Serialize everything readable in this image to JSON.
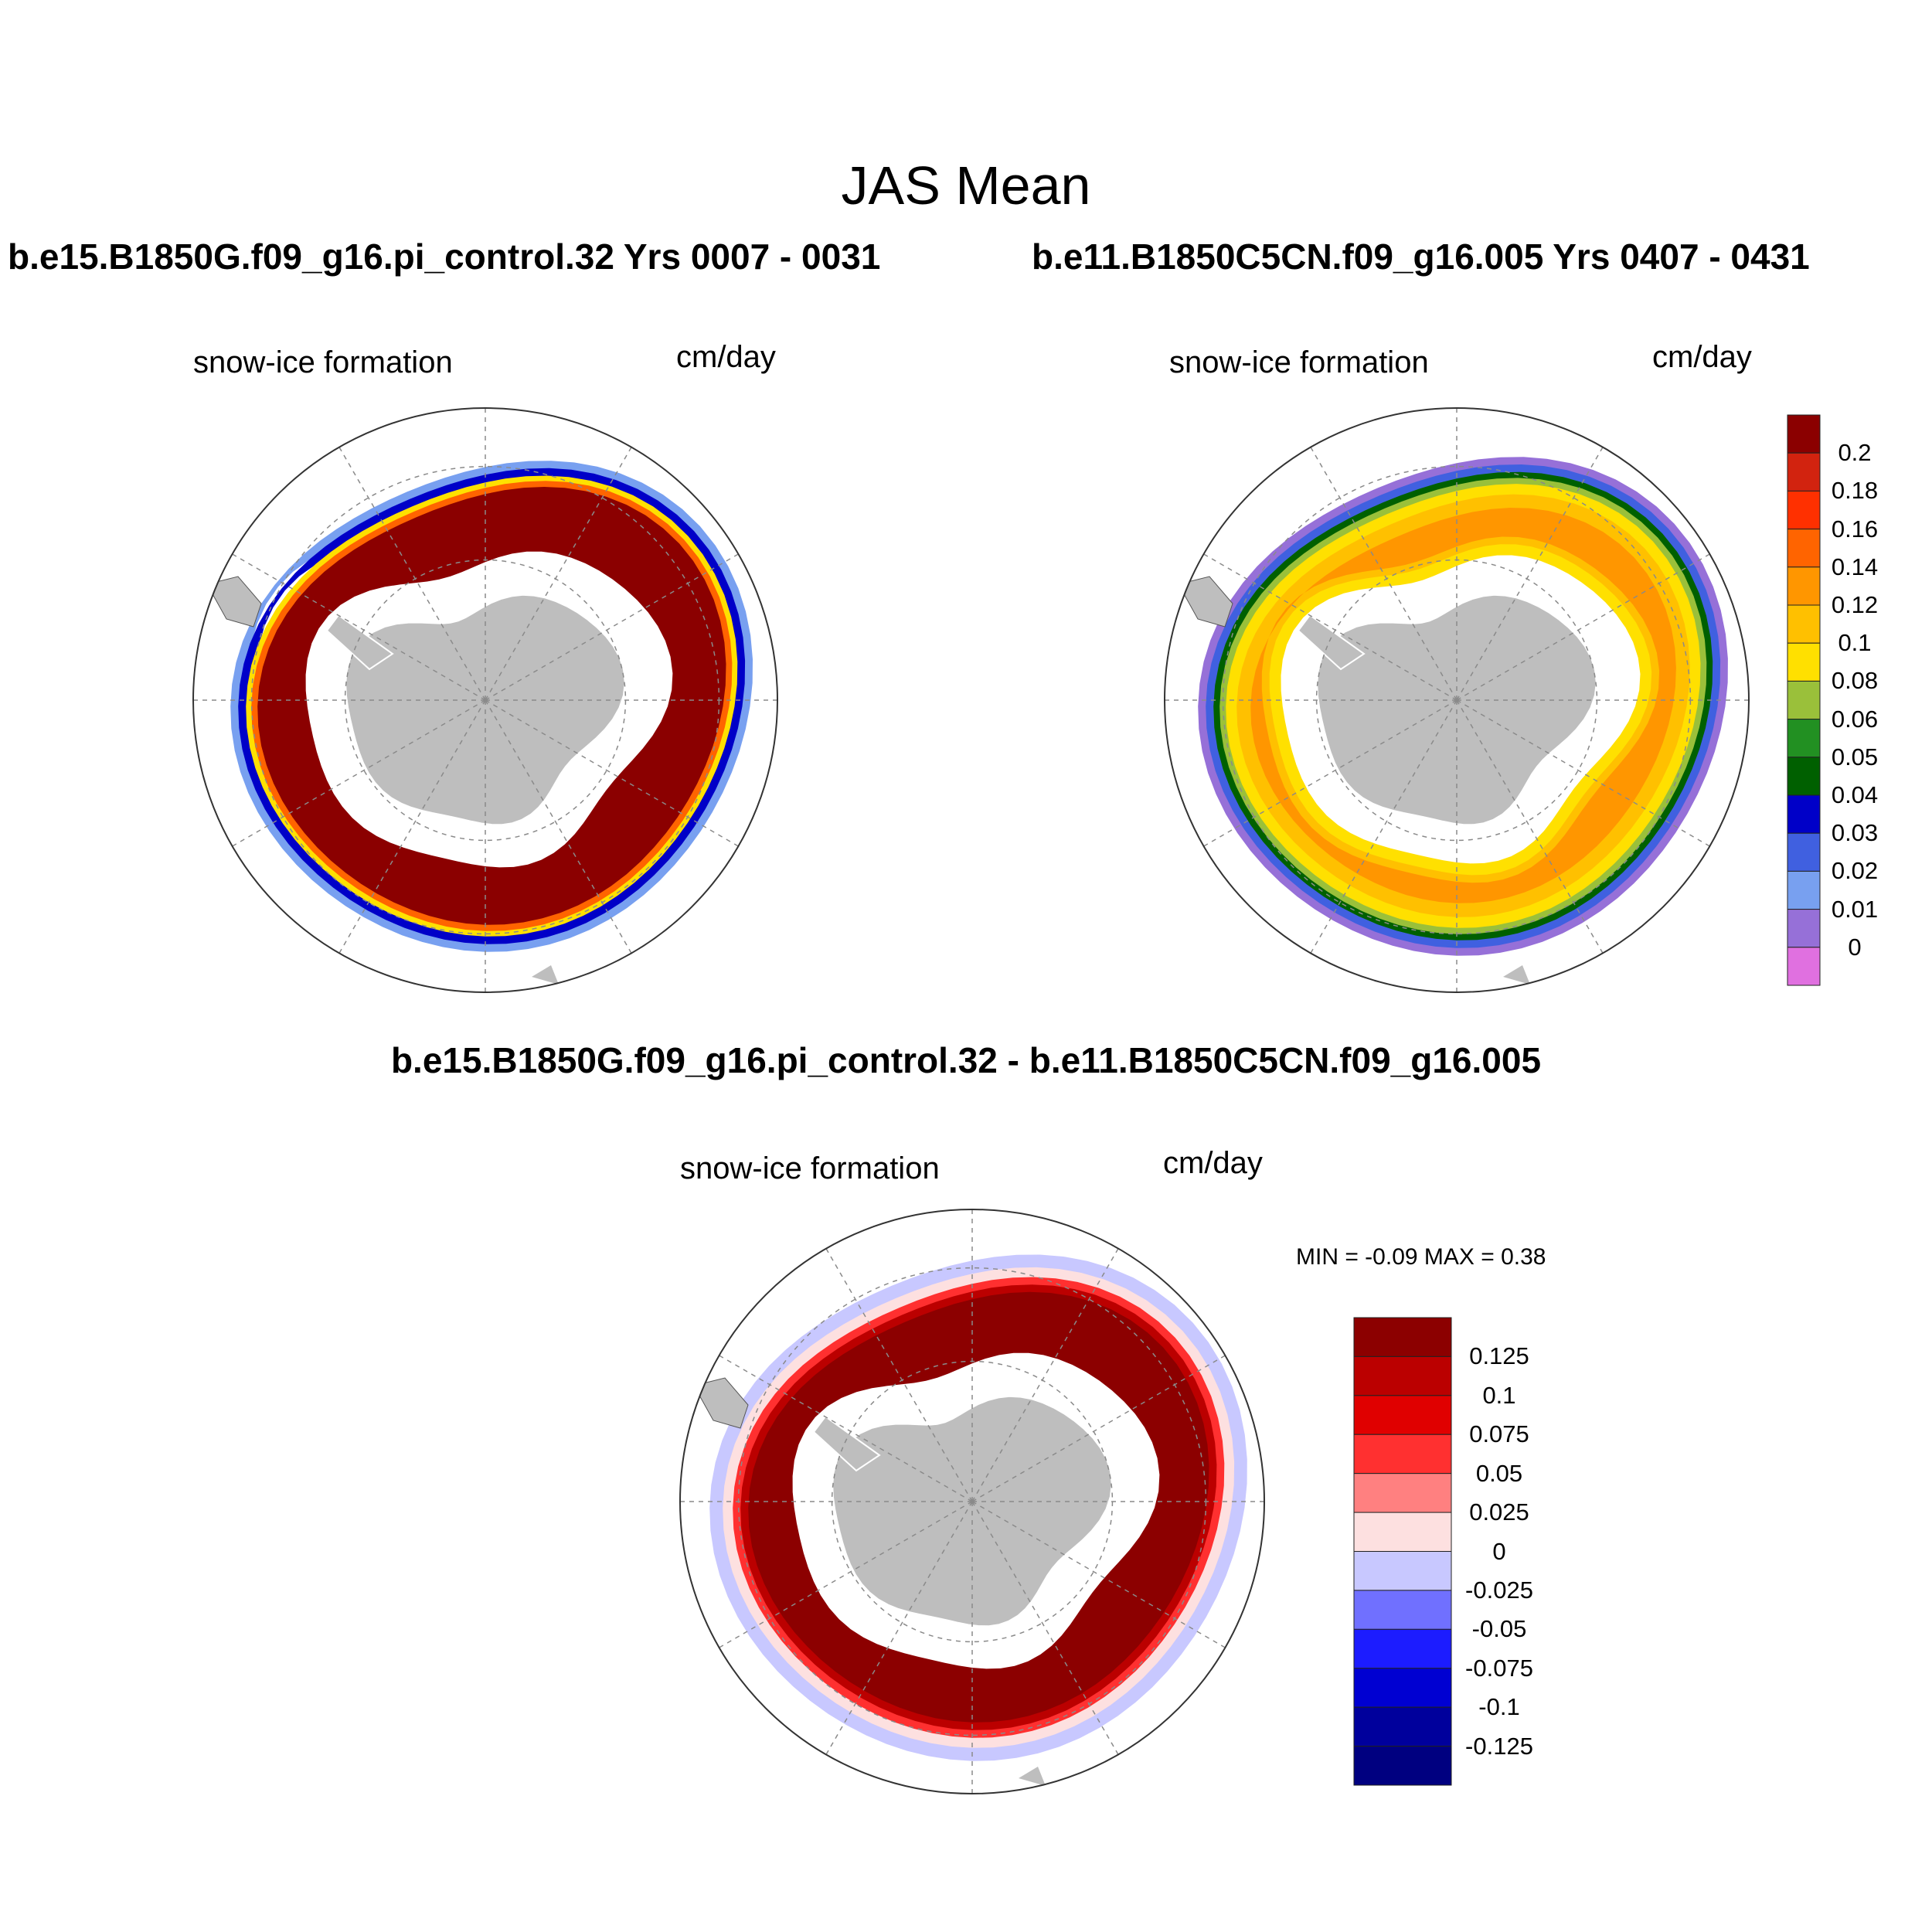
{
  "main_title": "JAS Mean",
  "panels": {
    "left": {
      "case_title": "b.e15.B1850G.f09_g16.pi_control.32  Yrs 0007 - 0031",
      "variable": "snow-ice formation",
      "units": "cm/day"
    },
    "right": {
      "case_title": "b.e11.B1850C5CN.f09_g16.005  Yrs 0407 - 0431",
      "variable": "snow-ice formation",
      "units": "cm/day"
    },
    "diff": {
      "case_title": "b.e15.B1850G.f09_g16.pi_control.32 - b.e11.B1850C5CN.f09_g16.005",
      "variable": "snow-ice formation",
      "units": "cm/day",
      "minmax": "MIN =  -0.09 MAX =   0.38"
    }
  },
  "colorbars": {
    "absolute": {
      "labels": [
        "0.2",
        "0.18",
        "0.16",
        "0.14",
        "0.12",
        "0.1",
        "0.08",
        "0.06",
        "0.05",
        "0.04",
        "0.03",
        "0.02",
        "0.01",
        "0"
      ],
      "colors": [
        "#8b0000",
        "#d2230f",
        "#ff3000",
        "#ff6400",
        "#ff9600",
        "#ffc000",
        "#ffe000",
        "#9ac03a",
        "#229022",
        "#006000",
        "#0000c8",
        "#4060e0",
        "#78a0f0",
        "#9670d8",
        "#e070e0"
      ]
    },
    "difference": {
      "labels": [
        "0.125",
        "0.1",
        "0.075",
        "0.05",
        "0.025",
        "0",
        "-0.025",
        "-0.05",
        "-0.075",
        "-0.1",
        "-0.125"
      ],
      "colors": [
        "#8c0000",
        "#bb0000",
        "#e00000",
        "#ff3030",
        "#ff8080",
        "#fde0e0",
        "#c8c8ff",
        "#7070ff",
        "#1c1cff",
        "#0000d2",
        "#00009c",
        "#000080"
      ]
    }
  },
  "map_colors": {
    "land": "#bebebe",
    "grid": "#8a8a8a"
  },
  "chart_data": [
    {
      "type": "heatmap",
      "title": "snow-ice formation",
      "subtitle": "b.e15.B1850G.f09_g16.pi_control.32  Yrs 0007 - 0031",
      "units": "cm/day",
      "projection": "south polar stereographic",
      "levels": [
        0,
        0.01,
        0.02,
        0.03,
        0.04,
        0.05,
        0.06,
        0.08,
        0.1,
        0.12,
        0.14,
        0.16,
        0.18,
        0.2
      ]
    },
    {
      "type": "heatmap",
      "title": "snow-ice formation",
      "subtitle": "b.e11.B1850C5CN.f09_g16.005  Yrs 0407 - 0431",
      "units": "cm/day",
      "projection": "south polar stereographic",
      "levels": [
        0,
        0.01,
        0.02,
        0.03,
        0.04,
        0.05,
        0.06,
        0.08,
        0.1,
        0.12,
        0.14,
        0.16,
        0.18,
        0.2
      ]
    },
    {
      "type": "heatmap",
      "title": "snow-ice formation",
      "subtitle": "b.e15.B1850G.f09_g16.pi_control.32 - b.e11.B1850C5CN.f09_g16.005",
      "units": "cm/day",
      "projection": "south polar stereographic",
      "min": -0.09,
      "max": 0.38,
      "levels": [
        -0.125,
        -0.1,
        -0.075,
        -0.05,
        -0.025,
        0,
        0.025,
        0.05,
        0.075,
        0.1,
        0.125
      ]
    }
  ]
}
